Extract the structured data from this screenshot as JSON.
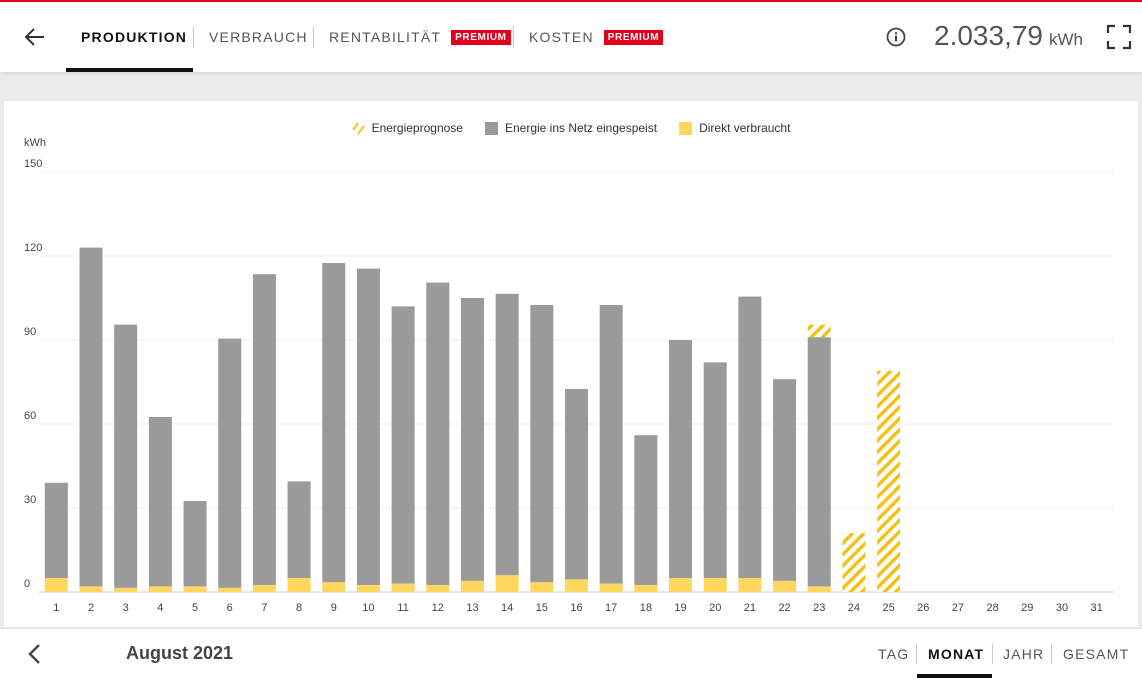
{
  "header": {
    "tabs": [
      {
        "label": "PRODUKTION",
        "active": true
      },
      {
        "label": "VERBRAUCH",
        "active": false
      },
      {
        "label": "RENTABILITÄT",
        "badge": "PREMIUM",
        "active": false
      },
      {
        "label": "KOSTEN",
        "badge": "PREMIUM",
        "active": false
      }
    ],
    "total_value": "2.033,79",
    "total_unit": "kWh"
  },
  "colors": {
    "brand_red": "#e2001a",
    "grid_bar": "#9a9a9a",
    "direct_bar": "#ffd75e",
    "forecast": "#f5c117"
  },
  "icons": {
    "back": "arrow-left-icon",
    "info": "info-circle-icon",
    "expand": "fullscreen-icon",
    "prev": "chevron-left-icon"
  },
  "chart_data": {
    "type": "bar",
    "stacked": true,
    "ylabel": "kWh",
    "ylim": [
      0,
      150
    ],
    "yticks": [
      0,
      30,
      60,
      90,
      120,
      150
    ],
    "grid": true,
    "legend_position": "top-center",
    "categories": [
      "1",
      "2",
      "3",
      "4",
      "5",
      "6",
      "7",
      "8",
      "9",
      "10",
      "11",
      "12",
      "13",
      "14",
      "15",
      "16",
      "17",
      "18",
      "19",
      "20",
      "21",
      "22",
      "23",
      "24",
      "25",
      "26",
      "27",
      "28",
      "29",
      "30",
      "31"
    ],
    "series": [
      {
        "name": "Direkt verbraucht",
        "color": "#ffd75e",
        "values": [
          5,
          2,
          1.5,
          2,
          2,
          1.5,
          2.5,
          5,
          3.5,
          2.5,
          3,
          2.5,
          4,
          6,
          3.5,
          4.5,
          3,
          2.5,
          5,
          5,
          5,
          4,
          2,
          0,
          0,
          0,
          0,
          0,
          0,
          0,
          0
        ]
      },
      {
        "name": "Energie ins Netz eingespeist",
        "color": "#9a9a9a",
        "values": [
          34,
          121,
          94,
          60.5,
          30.5,
          89,
          111,
          34.5,
          114,
          113,
          99,
          108,
          101,
          100.5,
          99,
          68,
          99.5,
          53.5,
          85,
          77,
          100.5,
          72,
          89,
          0,
          0,
          0,
          0,
          0,
          0,
          0,
          0
        ]
      },
      {
        "name": "Energieprognose",
        "color": "#f5c117",
        "pattern": "hatched",
        "values": [
          0,
          0,
          0,
          0,
          0,
          0,
          0,
          0,
          0,
          0,
          0,
          0,
          0,
          0,
          0,
          0,
          0,
          0,
          0,
          0,
          0,
          0,
          4.5,
          21,
          79,
          0,
          0,
          0,
          0,
          0,
          0
        ]
      }
    ]
  },
  "footer": {
    "period_label": "August 2021",
    "ranges": [
      {
        "label": "TAG",
        "active": false
      },
      {
        "label": "MONAT",
        "active": true
      },
      {
        "label": "JAHR",
        "active": false
      },
      {
        "label": "GESAMT",
        "active": false
      }
    ]
  }
}
